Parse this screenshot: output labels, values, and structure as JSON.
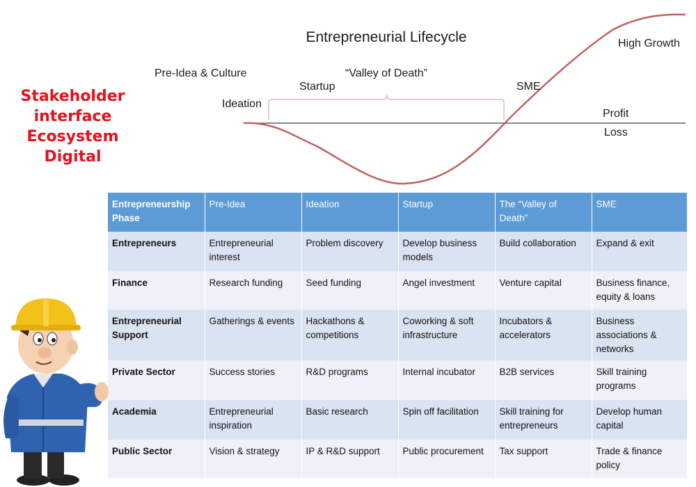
{
  "diagram": {
    "title": "Entrepreneurial Lifecycle",
    "stages": {
      "pre_idea": "Pre-Idea & Culture",
      "ideation": "Ideation",
      "startup": "Startup",
      "valley": "“Valley of Death”",
      "sme": "SME",
      "high_growth": "High Growth"
    },
    "baseline": {
      "above": "Profit",
      "below": "Loss"
    },
    "curve_color": "#c0605c"
  },
  "side_labels": [
    "Stakeholder",
    "interface",
    "Ecosystem",
    "Digital"
  ],
  "side_label_color": "#e3121c",
  "table": {
    "header_color": "#5c9bd6",
    "headers": [
      "Entrepreneurship Phase",
      "Pre-Idea",
      "Ideation",
      "Startup",
      "The “Valley of Death”",
      "SME"
    ],
    "rows": [
      [
        "Entrepreneurs",
        "Entrepreneurial interest",
        "Problem discovery",
        "Develop business models",
        "Build collaboration",
        "Expand & exit"
      ],
      [
        "Finance",
        "Research funding",
        "Seed funding",
        "Angel investment",
        "Venture capital",
        "Business finance, equity & loans"
      ],
      [
        "Entrepreneurial Support",
        "Gatherings & events",
        "Hackathons & competitions",
        "Coworking & soft infrastructure",
        "Incubators & accelerators",
        "Business associations & networks"
      ],
      [
        "Private Sector",
        "Success stories",
        "R&D programs",
        "Internal incubator",
        "B2B services",
        "Skill training programs"
      ],
      [
        "Academia",
        "Entrepreneurial inspiration",
        "Basic research",
        "Spin off facilitation",
        "Skill training for entrepreneurs",
        "Develop human capital"
      ],
      [
        "Public Sector",
        "Vision & strategy",
        "IP & R&D support",
        "Public procurement",
        "Tax support",
        "Trade & finance policy"
      ]
    ]
  },
  "figure": {
    "icon": "construction-worker-icon"
  }
}
